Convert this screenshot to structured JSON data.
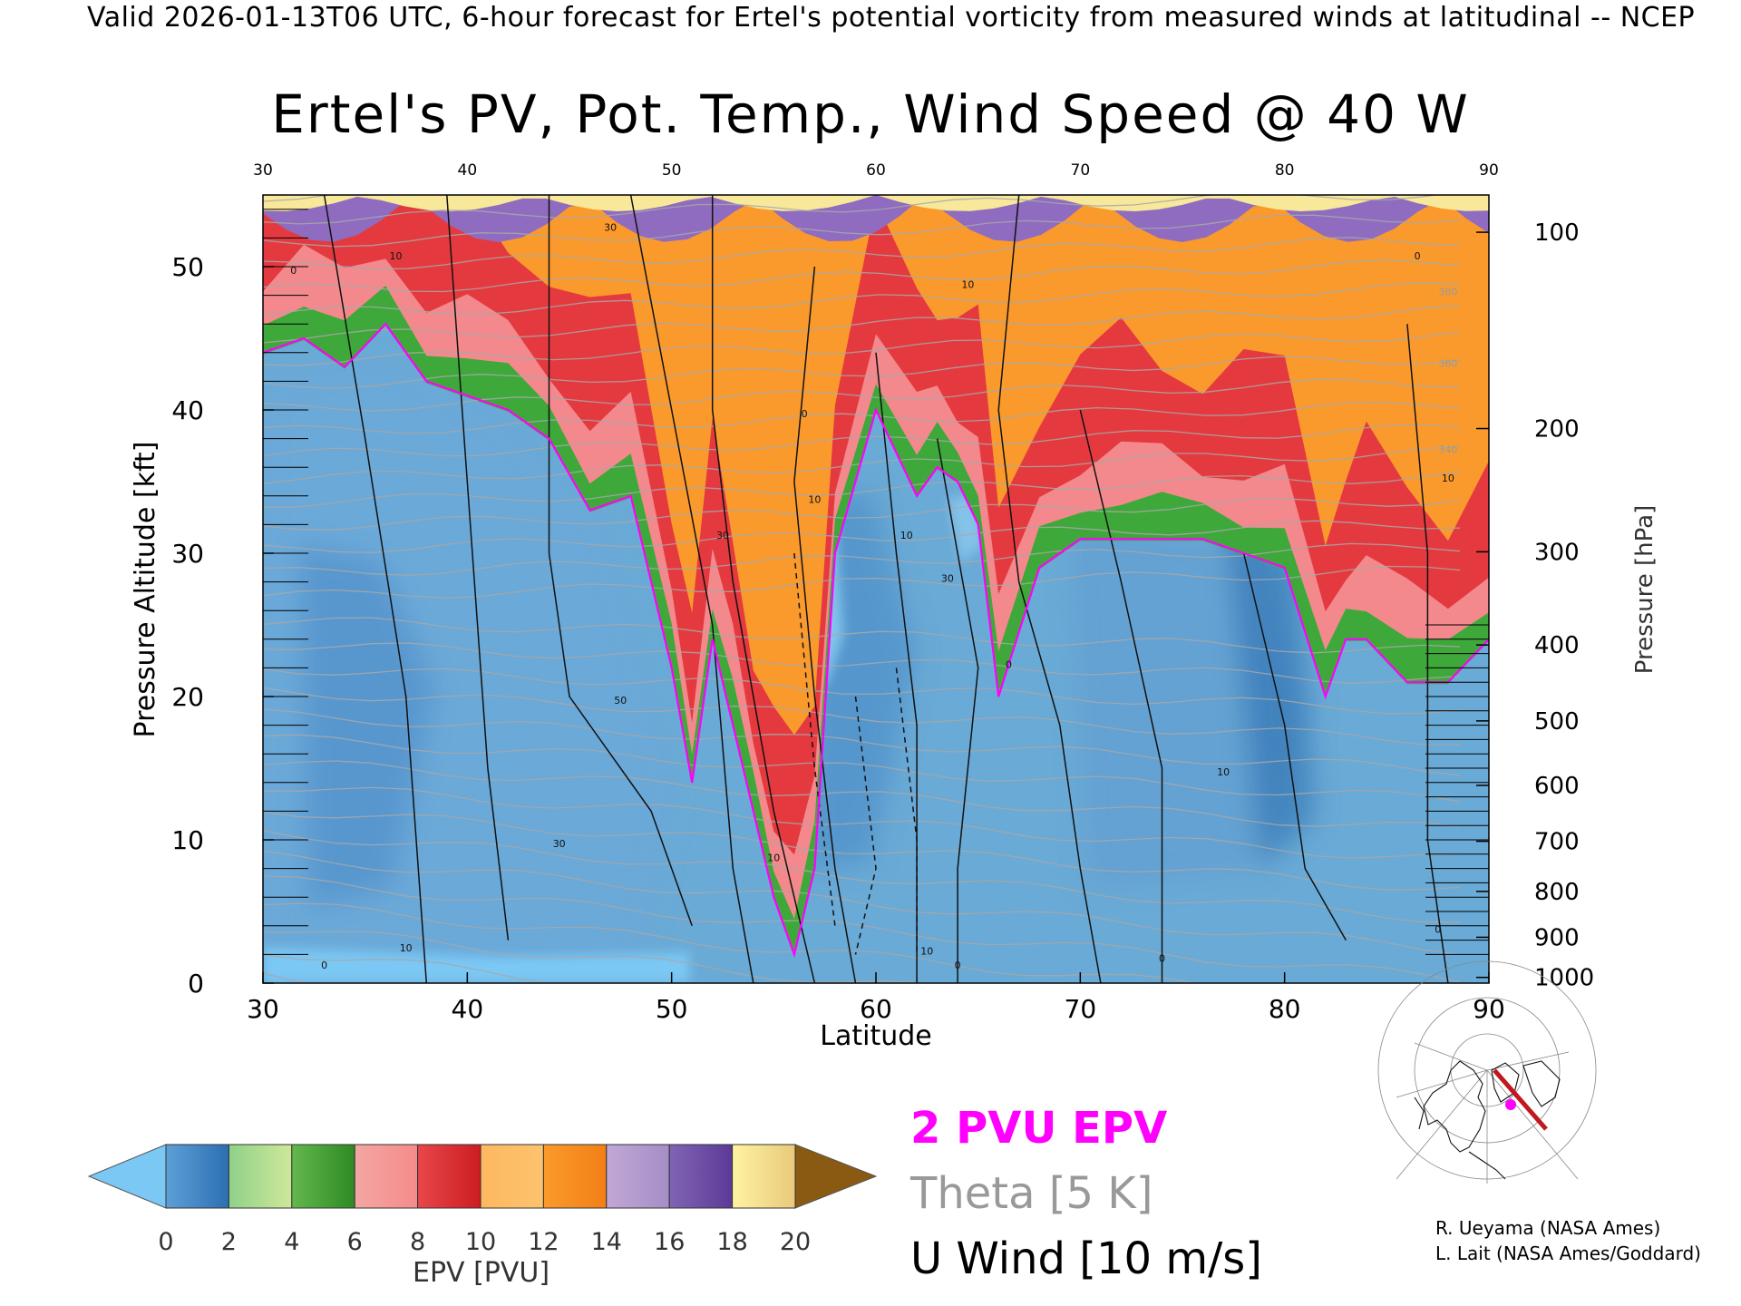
{
  "header": {
    "valid_caption": "Valid 2026-01-13T06 UTC, 6-hour forecast for Ertel's potential vorticity from measured winds at latitudinal -- NCEP",
    "title": "Ertel's PV, Pot. Temp., Wind Speed @ 40 W"
  },
  "legend": {
    "pv_label": "2 PVU EPV",
    "theta_label": "Theta [5 K]",
    "u_label": "U Wind [10 m/s]",
    "pv_color": "#ff00ff",
    "theta_color": "#999999",
    "u_color": "#000000"
  },
  "credits": {
    "line1": "R. Ueyama (NASA Ames)",
    "line2": "L. Lait (NASA Ames/Goddard)"
  },
  "colorbar": {
    "label": "EPV [PVU]",
    "ticks": [
      "0",
      "2",
      "4",
      "6",
      "8",
      "10",
      "12",
      "14",
      "16",
      "18",
      "20"
    ],
    "under_color": "#7cc8f4",
    "over_color": "#8a5a12",
    "bands": [
      [
        "#5da0d6",
        "#2c6fb2"
      ],
      [
        "#8fd18a",
        "#cfe89a"
      ],
      [
        "#63b84d",
        "#2e8a24"
      ],
      [
        "#f3a7a2",
        "#f58b8b"
      ],
      [
        "#e8474a",
        "#cc1d22"
      ],
      [
        "#fdb860",
        "#fdc36e"
      ],
      [
        "#fb9a2c",
        "#f27f16"
      ],
      [
        "#c2a8d6",
        "#a58dc6"
      ],
      [
        "#8164b4",
        "#5b3a96"
      ],
      [
        "#fff3a3",
        "#e8c97a"
      ]
    ]
  },
  "chart_data": {
    "type": "heatmap",
    "title": "Ertel's PV, Pot. Temp., Wind Speed @ 40 W",
    "xlabel": "Latitude",
    "ylabel": "Pressure Altitude [kft]",
    "y2label": "Pressure [hPa]",
    "xlim": [
      30,
      90
    ],
    "ylim": [
      0,
      55
    ],
    "x_ticks": [
      30,
      40,
      50,
      60,
      70,
      80,
      90
    ],
    "y_ticks": [
      0,
      10,
      20,
      30,
      40,
      50
    ],
    "pressure_ticks": [
      {
        "label": "100",
        "kft": 52.4
      },
      {
        "label": "200",
        "kft": 38.7
      },
      {
        "label": "300",
        "kft": 30.1
      },
      {
        "label": "400",
        "kft": 23.6
      },
      {
        "label": "500",
        "kft": 18.3
      },
      {
        "label": "600",
        "kft": 13.8
      },
      {
        "label": "700",
        "kft": 9.9
      },
      {
        "label": "800",
        "kft": 6.4
      },
      {
        "label": "900",
        "kft": 3.2
      },
      {
        "label": "1000",
        "kft": 0.4
      }
    ],
    "pv2_tropopause": {
      "latitude": [
        30,
        32,
        34,
        36,
        38,
        40,
        42,
        44,
        46,
        48,
        50,
        51,
        52,
        53,
        54,
        55,
        56,
        57,
        58,
        60,
        62,
        63,
        64,
        65,
        66,
        68,
        70,
        72,
        74,
        76,
        78,
        80,
        82,
        83,
        84,
        86,
        88,
        90
      ],
      "kft": [
        44,
        45,
        43,
        46,
        42,
        41,
        40,
        38,
        33,
        34,
        22,
        14,
        24,
        18,
        12,
        6,
        2,
        8,
        30,
        40,
        34,
        36,
        35,
        32,
        20,
        29,
        31,
        31,
        31,
        31,
        30,
        29,
        20,
        24,
        24,
        21,
        21,
        24
      ]
    },
    "u_wind_contour_labels": [
      {
        "value": "0",
        "latitude": 31.5,
        "kft": 49.5
      },
      {
        "value": "10",
        "latitude": 36.5,
        "kft": 50.5
      },
      {
        "value": "30",
        "latitude": 47,
        "kft": 52.5
      },
      {
        "value": "10",
        "latitude": 64.5,
        "kft": 48.5
      },
      {
        "value": "0",
        "latitude": 86.5,
        "kft": 50.5
      },
      {
        "value": "0",
        "latitude": 56.5,
        "kft": 39.5
      },
      {
        "value": "30",
        "latitude": 52.5,
        "kft": 31
      },
      {
        "value": "10",
        "latitude": 57,
        "kft": 33.5
      },
      {
        "value": "10",
        "latitude": 61.5,
        "kft": 31
      },
      {
        "value": "30",
        "latitude": 63.5,
        "kft": 28
      },
      {
        "value": "10",
        "latitude": 88,
        "kft": 35
      },
      {
        "value": "50",
        "latitude": 47.5,
        "kft": 19.5
      },
      {
        "value": "0",
        "latitude": 66.5,
        "kft": 22
      },
      {
        "value": "30",
        "latitude": 44.5,
        "kft": 9.5
      },
      {
        "value": "10",
        "latitude": 55,
        "kft": 8.5
      },
      {
        "value": "10",
        "latitude": 77,
        "kft": 14.5
      },
      {
        "value": "10",
        "latitude": 37,
        "kft": 2.2
      },
      {
        "value": "0",
        "latitude": 33,
        "kft": 1
      },
      {
        "value": "10",
        "latitude": 62.5,
        "kft": 2
      },
      {
        "value": "0",
        "latitude": 64,
        "kft": 1
      },
      {
        "value": "0",
        "latitude": 74,
        "kft": 1.5
      },
      {
        "value": "0",
        "latitude": 87.5,
        "kft": 3.5
      }
    ],
    "theta_contour_labels": [
      {
        "value": "360",
        "latitude": 88,
        "kft": 43
      },
      {
        "value": "380",
        "latitude": 88,
        "kft": 48
      },
      {
        "value": "340",
        "latitude": 88,
        "kft": 37
      }
    ]
  },
  "map_inset": {
    "marker_color": "#ff00ff",
    "track_color": "#c0181e"
  }
}
